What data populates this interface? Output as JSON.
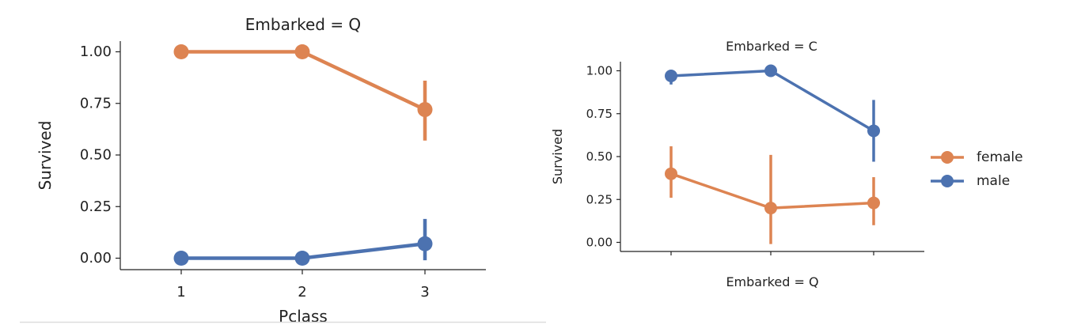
{
  "chart_data": [
    {
      "type": "line",
      "title": "Embarked = Q",
      "xlabel": "Pclass",
      "ylabel": "Survived",
      "categories": [
        "1",
        "2",
        "3"
      ],
      "ylim": [
        -0.05,
        1.05
      ],
      "yticks": [
        "0.00",
        "0.25",
        "0.50",
        "0.75",
        "1.00"
      ],
      "series": [
        {
          "name": "female",
          "color": "#dd8452",
          "values": [
            1.0,
            1.0,
            0.72
          ],
          "ci": [
            null,
            null,
            [
              0.57,
              0.86
            ]
          ]
        },
        {
          "name": "male",
          "color": "#4c72b0",
          "values": [
            0.0,
            0.0,
            0.07
          ],
          "ci": [
            null,
            null,
            [
              -0.01,
              0.19
            ]
          ]
        }
      ]
    },
    {
      "type": "line",
      "title": "Embarked = C",
      "xlabel": "Embarked = Q",
      "ylabel": "Survived",
      "categories": [
        "",
        "",
        ""
      ],
      "ylim": [
        -0.05,
        1.05
      ],
      "yticks": [
        "0.00",
        "0.25",
        "0.50",
        "0.75",
        "1.00"
      ],
      "legend": "right",
      "series": [
        {
          "name": "female",
          "color": "#dd8452",
          "values": [
            0.4,
            0.2,
            0.23
          ],
          "ci": [
            [
              0.26,
              0.56
            ],
            [
              -0.01,
              0.51
            ],
            [
              0.1,
              0.38
            ]
          ]
        },
        {
          "name": "male",
          "color": "#4c72b0",
          "values": [
            0.97,
            1.0,
            0.65
          ],
          "ci": [
            [
              0.92,
              1.0
            ],
            null,
            [
              0.47,
              0.83
            ]
          ]
        }
      ]
    }
  ]
}
